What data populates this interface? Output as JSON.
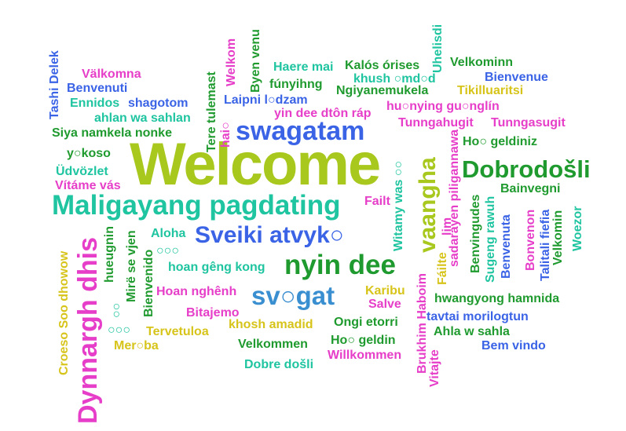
{
  "words": [
    {
      "text": "Welcome",
      "color": "#a8c81e",
      "orient": "h"
    },
    {
      "text": "Maligayang pagdating",
      "color": "#1fc4a0",
      "orient": "h"
    },
    {
      "text": "Dobrodošli",
      "color": "#1f9a2e",
      "orient": "h"
    },
    {
      "text": "swagatam",
      "color": "#3a63e6",
      "orient": "h"
    },
    {
      "text": "Sveiki atvyk○",
      "color": "#3a63e6",
      "orient": "h"
    },
    {
      "text": "nyin dee",
      "color": "#1f9a2e",
      "orient": "h"
    },
    {
      "text": "sv○gat",
      "color": "#3a8fd0",
      "orient": "h"
    },
    {
      "text": "Dynnargh dhis",
      "color": "#e63ec8",
      "orient": "v"
    },
    {
      "text": "vaangha",
      "color": "#a8c81e",
      "orient": "v"
    },
    {
      "text": "Croeso Soo dhowow",
      "color": "#d7c41a",
      "orient": "v"
    },
    {
      "text": "Tashi Delek",
      "color": "#3a63e6",
      "orient": "v"
    },
    {
      "text": "Välkomna",
      "color": "#e63ec8",
      "orient": "h"
    },
    {
      "text": "Benvenuti",
      "color": "#3a63e6",
      "orient": "h"
    },
    {
      "text": "Ennidos",
      "color": "#1fc4a0",
      "orient": "h"
    },
    {
      "text": "shagotom",
      "color": "#3a63e6",
      "orient": "h"
    },
    {
      "text": "ahlan wa sahlan",
      "color": "#1fc4a0",
      "orient": "h"
    },
    {
      "text": "Siya namkela nonke",
      "color": "#1f9a2e",
      "orient": "h"
    },
    {
      "text": "y○koso",
      "color": "#1f9a2e",
      "orient": "h"
    },
    {
      "text": "Üdvözlet",
      "color": "#1fc4a0",
      "orient": "h"
    },
    {
      "text": "Vítáme vás",
      "color": "#e63ec8",
      "orient": "h"
    },
    {
      "text": "Tere tulemast",
      "color": "#1f9a2e",
      "orient": "v"
    },
    {
      "text": "Welkom",
      "color": "#e63ec8",
      "orient": "v"
    },
    {
      "text": "hai○",
      "color": "#e63ec8",
      "orient": "v"
    },
    {
      "text": "Byen venu",
      "color": "#1f9a2e",
      "orient": "v"
    },
    {
      "text": "Haere mai",
      "color": "#1fc4a0",
      "orient": "h"
    },
    {
      "text": "Kalós órises",
      "color": "#1f9a2e",
      "orient": "h"
    },
    {
      "text": "Uhelisdi",
      "color": "#1fc4a0",
      "orient": "v"
    },
    {
      "text": "Velkominn",
      "color": "#1f9a2e",
      "orient": "h"
    },
    {
      "text": "fúnyihng",
      "color": "#1f9a2e",
      "orient": "h"
    },
    {
      "text": "khush ○md○d",
      "color": "#1fc4a0",
      "orient": "h"
    },
    {
      "text": "Bienvenue",
      "color": "#3a63e6",
      "orient": "h"
    },
    {
      "text": "Ngiyanemukela",
      "color": "#1f9a2e",
      "orient": "h"
    },
    {
      "text": "Tikilluaritsi",
      "color": "#d7c41a",
      "orient": "h"
    },
    {
      "text": "Laipni l○dzam",
      "color": "#3a63e6",
      "orient": "h"
    },
    {
      "text": "hu○nying gu○nglín",
      "color": "#e63ec8",
      "orient": "h"
    },
    {
      "text": "yin dee dtôn ráp",
      "color": "#e63ec8",
      "orient": "h"
    },
    {
      "text": "Tunngahugit",
      "color": "#e63ec8",
      "orient": "h"
    },
    {
      "text": "Tunngasugit",
      "color": "#e63ec8",
      "orient": "h"
    },
    {
      "text": "Ho○ geldiniz",
      "color": "#1f9a2e",
      "orient": "h"
    },
    {
      "text": "Witamy was ○○",
      "color": "#1fc4a0",
      "orient": "v"
    },
    {
      "text": "sadarayen piligannawa",
      "color": "#e63ec8",
      "orient": "v"
    },
    {
      "text": "lim",
      "color": "#e63ec8",
      "orient": "v"
    },
    {
      "text": "Bainvegni",
      "color": "#1f9a2e",
      "orient": "h"
    },
    {
      "text": "Failt",
      "color": "#e63ec8",
      "orient": "h"
    },
    {
      "text": "Benvingudes",
      "color": "#1f9a2e",
      "orient": "v"
    },
    {
      "text": "Sugeng rawuh",
      "color": "#1fc4a0",
      "orient": "v"
    },
    {
      "text": "Benvenuta",
      "color": "#3a63e6",
      "orient": "v"
    },
    {
      "text": "Bonvenon",
      "color": "#e63ec8",
      "orient": "v"
    },
    {
      "text": "Talitali fiefia",
      "color": "#3a63e6",
      "orient": "v"
    },
    {
      "text": "Velkomin",
      "color": "#1f9a2e",
      "orient": "v"
    },
    {
      "text": "Woezor",
      "color": "#1fc4a0",
      "orient": "v"
    },
    {
      "text": "hueugnin",
      "color": "#1f9a2e",
      "orient": "v"
    },
    {
      "text": "○○",
      "color": "#1fc4a0",
      "orient": "v"
    },
    {
      "text": "Mirë se vjen",
      "color": "#1f9a2e",
      "orient": "v"
    },
    {
      "text": "Bienvenido",
      "color": "#1f9a2e",
      "orient": "v"
    },
    {
      "text": "Aloha",
      "color": "#1fc4a0",
      "orient": "h"
    },
    {
      "text": "○○○",
      "color": "#1fc4a0",
      "orient": "h"
    },
    {
      "text": "hoan gêng kong",
      "color": "#1fc4a0",
      "orient": "h"
    },
    {
      "text": "Hoan nghênh",
      "color": "#e63ec8",
      "orient": "h"
    },
    {
      "text": "Bitajemo",
      "color": "#e63ec8",
      "orient": "h"
    },
    {
      "text": "○○○",
      "color": "#1fc4a0",
      "orient": "h"
    },
    {
      "text": "Tervetuloa",
      "color": "#d7c41a",
      "orient": "h"
    },
    {
      "text": "Mer○ba",
      "color": "#d7c41a",
      "orient": "h"
    },
    {
      "text": "khosh amadid",
      "color": "#d7c41a",
      "orient": "h"
    },
    {
      "text": "Velkommen",
      "color": "#1f9a2e",
      "orient": "h"
    },
    {
      "text": "Dobre došli",
      "color": "#1fc4a0",
      "orient": "h"
    },
    {
      "text": "Karibu",
      "color": "#d7c41a",
      "orient": "h"
    },
    {
      "text": "Salve",
      "color": "#e63ec8",
      "orient": "h"
    },
    {
      "text": "Ongi etorri",
      "color": "#1f9a2e",
      "orient": "h"
    },
    {
      "text": "Ho○ geldin",
      "color": "#1f9a2e",
      "orient": "h"
    },
    {
      "text": "Willkommen",
      "color": "#e63ec8",
      "orient": "h"
    },
    {
      "text": "Brukhim Haboim",
      "color": "#e63ec8",
      "orient": "v"
    },
    {
      "text": "Vitajte",
      "color": "#e63ec8",
      "orient": "v"
    },
    {
      "text": "Fáilte",
      "color": "#d7c41a",
      "orient": "v"
    },
    {
      "text": "hwangyong hamnida",
      "color": "#1f9a2e",
      "orient": "h"
    },
    {
      "text": "tavtai morilogtun",
      "color": "#3a63e6",
      "orient": "h"
    },
    {
      "text": "Ahla w sahla",
      "color": "#1f9a2e",
      "orient": "h"
    },
    {
      "text": "Bem vindo",
      "color": "#3a63e6",
      "orient": "h"
    }
  ]
}
